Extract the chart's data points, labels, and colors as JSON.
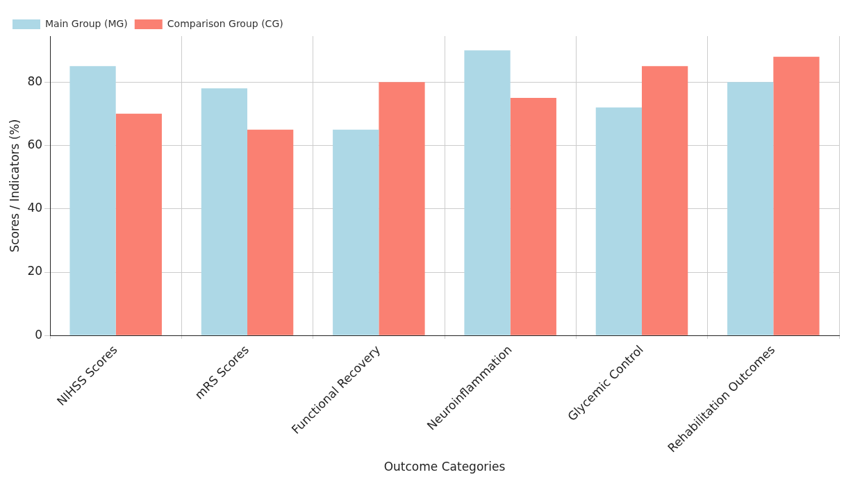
{
  "chart_data": {
    "type": "bar",
    "xlabel": "Outcome Categories",
    "ylabel": "Scores / Indicators (%)",
    "categories": [
      "NIHSS Scores",
      "mRS Scores",
      "Functional Recovery",
      "Neuroinflammation",
      "Glycemic Control",
      "Rehabilitation Outcomes"
    ],
    "series": [
      {
        "name": "Main Group (MG)",
        "color": "#add8e6",
        "values": [
          85,
          78,
          65,
          90,
          72,
          80
        ]
      },
      {
        "name": "Comparison Group (CG)",
        "color": "#fa8072",
        "values": [
          70,
          65,
          80,
          75,
          85,
          88
        ]
      }
    ],
    "ylim": [
      0,
      94.5
    ],
    "yticks": [
      0,
      20,
      40,
      60,
      80
    ],
    "grid": true,
    "legend": "top left"
  }
}
